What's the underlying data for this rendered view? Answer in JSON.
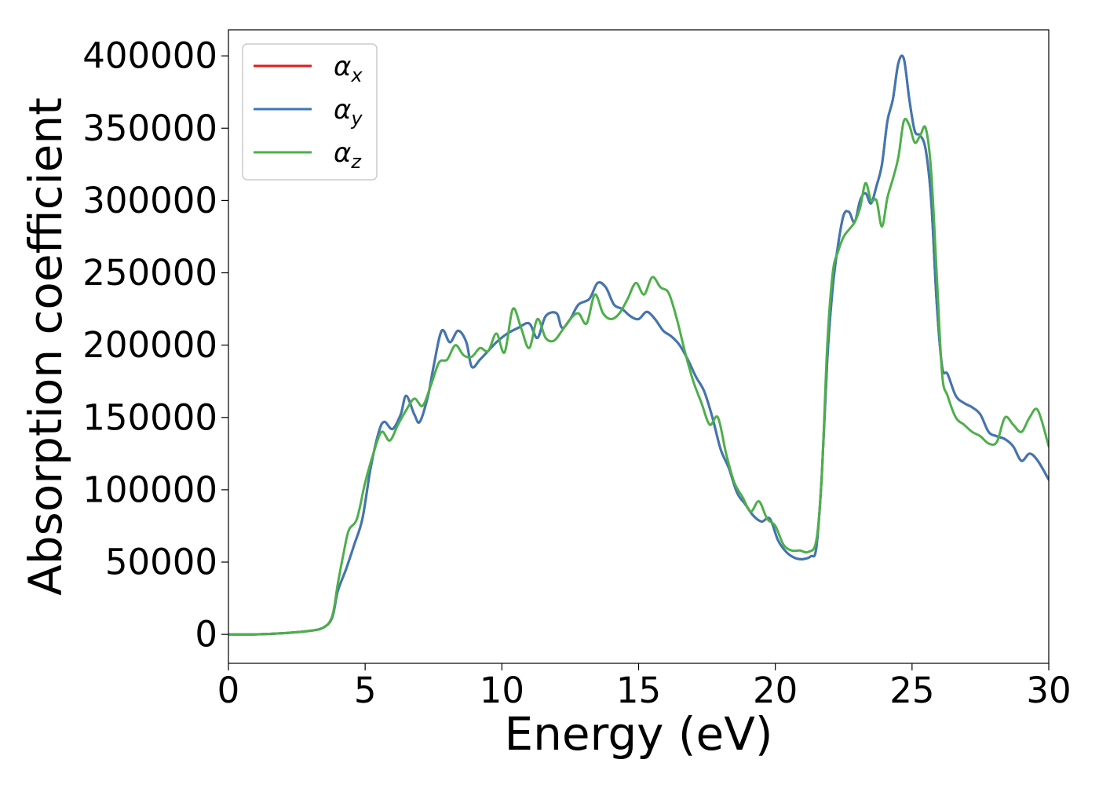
{
  "chart_data": {
    "type": "line",
    "xlabel": "Energy (eV)",
    "ylabel": "Absorption coefficient",
    "xlim": [
      0,
      30
    ],
    "ylim": [
      -20000,
      418000
    ],
    "xticks": [
      0,
      5,
      10,
      15,
      20,
      25,
      30
    ],
    "xtick_labels": [
      "0",
      "5",
      "10",
      "15",
      "20",
      "25",
      "30"
    ],
    "yticks": [
      0,
      50000,
      100000,
      150000,
      200000,
      250000,
      300000,
      350000,
      400000
    ],
    "ytick_labels": [
      "0",
      "50000",
      "100000",
      "150000",
      "200000",
      "250000",
      "300000",
      "350000",
      "400000"
    ],
    "grid": false,
    "legend_position": "top-left",
    "series": [
      {
        "name": "αx",
        "label_base": "α",
        "label_sub": "x",
        "color": "#e41a1c",
        "x": [
          0,
          1,
          2,
          3,
          3.5,
          3.8,
          4.0,
          4.3,
          4.6,
          4.9,
          5.2,
          5.5,
          5.7,
          6.0,
          6.3,
          6.5,
          6.8,
          7.0,
          7.3,
          7.5,
          7.8,
          8.1,
          8.4,
          8.7,
          8.9,
          9.2,
          9.5,
          9.8,
          10.2,
          10.6,
          11.0,
          11.3,
          11.6,
          12.0,
          12.2,
          12.5,
          12.8,
          13.2,
          13.5,
          13.8,
          14.1,
          14.4,
          14.7,
          15.0,
          15.3,
          15.6,
          15.9,
          16.2,
          16.5,
          16.8,
          17.1,
          17.4,
          17.7,
          18.0,
          18.3,
          18.6,
          18.9,
          19.2,
          19.5,
          19.8,
          20.1,
          20.4,
          20.7,
          21.0,
          21.3,
          21.5,
          21.7,
          21.9,
          22.1,
          22.3,
          22.5,
          22.7,
          22.9,
          23.1,
          23.3,
          23.5,
          23.7,
          23.9,
          24.1,
          24.3,
          24.5,
          24.7,
          24.9,
          25.1,
          25.3,
          25.5,
          25.7,
          25.9,
          26.1,
          26.3,
          26.6,
          26.9,
          27.2,
          27.5,
          27.8,
          28.1,
          28.4,
          28.7,
          29.0,
          29.3,
          29.6,
          30.0
        ],
        "y": [
          0,
          0,
          800,
          2500,
          5000,
          12000,
          30000,
          45000,
          62000,
          80000,
          115000,
          140000,
          147000,
          142000,
          152000,
          165000,
          152000,
          147000,
          165000,
          185000,
          210000,
          202000,
          210000,
          202000,
          185000,
          190000,
          196000,
          202000,
          208000,
          212000,
          215000,
          205000,
          220000,
          222000,
          212000,
          218000,
          228000,
          232000,
          243000,
          240000,
          228000,
          225000,
          220000,
          218000,
          223000,
          218000,
          210000,
          206000,
          200000,
          190000,
          178000,
          168000,
          150000,
          128000,
          115000,
          98000,
          90000,
          82000,
          78000,
          80000,
          65000,
          57000,
          53000,
          52000,
          54000,
          60000,
          110000,
          190000,
          240000,
          270000,
          290000,
          292000,
          285000,
          300000,
          305000,
          298000,
          310000,
          325000,
          355000,
          370000,
          395000,
          398000,
          370000,
          348000,
          345000,
          335000,
          300000,
          230000,
          185000,
          180000,
          165000,
          160000,
          157000,
          152000,
          140000,
          137000,
          135000,
          130000,
          120000,
          125000,
          120000,
          107000
        ]
      },
      {
        "name": "αy",
        "label_base": "α",
        "label_sub": "y",
        "color": "#3c78b4",
        "x": [
          0,
          1,
          2,
          3,
          3.5,
          3.8,
          4.0,
          4.3,
          4.6,
          4.9,
          5.2,
          5.5,
          5.7,
          6.0,
          6.3,
          6.5,
          6.8,
          7.0,
          7.3,
          7.5,
          7.8,
          8.1,
          8.4,
          8.7,
          8.9,
          9.2,
          9.5,
          9.8,
          10.2,
          10.6,
          11.0,
          11.3,
          11.6,
          12.0,
          12.2,
          12.5,
          12.8,
          13.2,
          13.5,
          13.8,
          14.1,
          14.4,
          14.7,
          15.0,
          15.3,
          15.6,
          15.9,
          16.2,
          16.5,
          16.8,
          17.1,
          17.4,
          17.7,
          18.0,
          18.3,
          18.6,
          18.9,
          19.2,
          19.5,
          19.8,
          20.1,
          20.4,
          20.7,
          21.0,
          21.3,
          21.5,
          21.7,
          21.9,
          22.1,
          22.3,
          22.5,
          22.7,
          22.9,
          23.1,
          23.3,
          23.5,
          23.7,
          23.9,
          24.1,
          24.3,
          24.5,
          24.7,
          24.9,
          25.1,
          25.3,
          25.5,
          25.7,
          25.9,
          26.1,
          26.3,
          26.6,
          26.9,
          27.2,
          27.5,
          27.8,
          28.1,
          28.4,
          28.7,
          29.0,
          29.3,
          29.6,
          30.0
        ],
        "y": [
          0,
          0,
          800,
          2500,
          5000,
          12000,
          30000,
          45000,
          62000,
          80000,
          115000,
          140000,
          147000,
          142000,
          152000,
          165000,
          152000,
          147000,
          165000,
          185000,
          210000,
          202000,
          210000,
          202000,
          185000,
          190000,
          196000,
          202000,
          208000,
          212000,
          215000,
          205000,
          220000,
          222000,
          212000,
          218000,
          228000,
          232000,
          243000,
          240000,
          228000,
          225000,
          220000,
          218000,
          223000,
          218000,
          210000,
          206000,
          200000,
          190000,
          178000,
          168000,
          150000,
          128000,
          115000,
          98000,
          90000,
          82000,
          78000,
          80000,
          65000,
          57000,
          53000,
          52000,
          54000,
          60000,
          110000,
          190000,
          240000,
          270000,
          290000,
          292000,
          285000,
          300000,
          305000,
          298000,
          310000,
          325000,
          355000,
          370000,
          395000,
          398000,
          370000,
          348000,
          345000,
          335000,
          300000,
          230000,
          185000,
          180000,
          165000,
          160000,
          157000,
          152000,
          140000,
          137000,
          135000,
          130000,
          120000,
          125000,
          120000,
          107000
        ]
      },
      {
        "name": "αz",
        "label_base": "α",
        "label_sub": "z",
        "color": "#4daf4a",
        "x": [
          0,
          1,
          2,
          3,
          3.5,
          3.8,
          4.0,
          4.2,
          4.4,
          4.7,
          5.0,
          5.3,
          5.6,
          5.9,
          6.2,
          6.5,
          6.8,
          7.1,
          7.4,
          7.7,
          8.0,
          8.3,
          8.6,
          8.9,
          9.2,
          9.5,
          9.8,
          10.1,
          10.4,
          10.7,
          11.0,
          11.3,
          11.6,
          11.9,
          12.2,
          12.5,
          12.8,
          13.1,
          13.4,
          13.7,
          14.0,
          14.3,
          14.6,
          14.9,
          15.2,
          15.5,
          15.8,
          16.1,
          16.4,
          16.7,
          17.0,
          17.3,
          17.6,
          17.9,
          18.2,
          18.5,
          18.8,
          19.1,
          19.4,
          19.7,
          20.0,
          20.3,
          20.6,
          20.9,
          21.2,
          21.5,
          21.7,
          21.9,
          22.1,
          22.3,
          22.5,
          22.7,
          22.9,
          23.1,
          23.3,
          23.5,
          23.7,
          23.9,
          24.1,
          24.3,
          24.5,
          24.7,
          24.9,
          25.1,
          25.3,
          25.5,
          25.7,
          25.9,
          26.1,
          26.3,
          26.6,
          26.9,
          27.2,
          27.5,
          27.8,
          28.1,
          28.4,
          28.7,
          29.0,
          29.3,
          29.6,
          30.0
        ],
        "y": [
          0,
          0,
          800,
          2500,
          5000,
          13000,
          35000,
          55000,
          72000,
          80000,
          105000,
          125000,
          140000,
          134000,
          145000,
          155000,
          163000,
          158000,
          172000,
          188000,
          190000,
          200000,
          193000,
          192000,
          198000,
          196000,
          208000,
          195000,
          225000,
          212000,
          198000,
          218000,
          205000,
          203000,
          210000,
          218000,
          222000,
          215000,
          235000,
          222000,
          218000,
          222000,
          232000,
          243000,
          235000,
          247000,
          240000,
          236000,
          218000,
          195000,
          175000,
          160000,
          145000,
          150000,
          125000,
          105000,
          95000,
          85000,
          92000,
          80000,
          75000,
          62000,
          58000,
          58000,
          57000,
          65000,
          110000,
          200000,
          250000,
          265000,
          275000,
          280000,
          285000,
          295000,
          312000,
          300000,
          300000,
          282000,
          302000,
          315000,
          330000,
          355000,
          352000,
          340000,
          345000,
          350000,
          320000,
          250000,
          180000,
          165000,
          150000,
          145000,
          140000,
          137000,
          132000,
          133000,
          150000,
          145000,
          140000,
          150000,
          155000,
          130000
        ]
      }
    ]
  }
}
